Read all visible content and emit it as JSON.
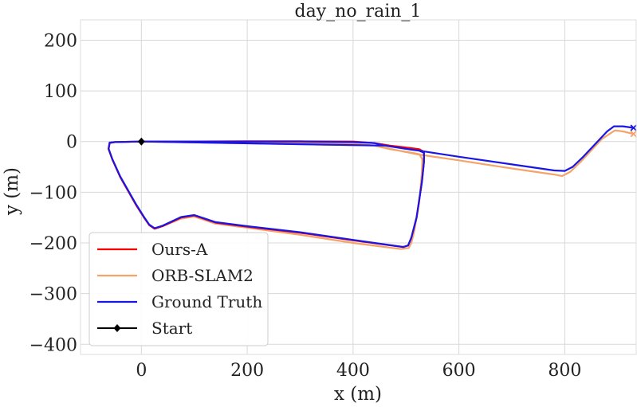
{
  "chart_data": {
    "type": "line",
    "title": "day_no_rain_1",
    "xlabel": "x (m)",
    "ylabel": "y (m)",
    "xlim": [
      -115,
      935
    ],
    "ylim": [
      -420,
      240
    ],
    "xticks": [
      0,
      200,
      400,
      600,
      800
    ],
    "yticks": [
      200,
      100,
      0,
      -100,
      -200,
      -300,
      -400
    ],
    "xtick_labels": [
      "0",
      "200",
      "400",
      "600",
      "800"
    ],
    "ytick_labels": [
      "200",
      "100",
      "0",
      "−100",
      "−200",
      "−300",
      "−400"
    ],
    "grid": true,
    "legend_position": "lower-left",
    "series": [
      {
        "name": "Ours-A",
        "color": "#ff0000",
        "points": [
          [
            0,
            0
          ],
          [
            100,
            0
          ],
          [
            200,
            0.5
          ],
          [
            300,
            0.5
          ],
          [
            400,
            0
          ],
          [
            440,
            -3
          ],
          [
            470,
            -8
          ],
          [
            510,
            -13
          ],
          [
            525,
            -15
          ],
          [
            534,
            -20
          ],
          [
            534,
            -40
          ],
          [
            530,
            -80
          ],
          [
            520,
            -150
          ],
          [
            510,
            -190
          ],
          [
            504,
            -205
          ],
          [
            495,
            -208
          ],
          [
            400,
            -195
          ],
          [
            300,
            -180
          ],
          [
            200,
            -168
          ],
          [
            140,
            -160
          ],
          [
            100,
            -146
          ],
          [
            75,
            -150
          ],
          [
            40,
            -167
          ],
          [
            25,
            -172
          ],
          [
            15,
            -165
          ],
          [
            5,
            -150
          ],
          [
            -10,
            -125
          ],
          [
            -40,
            -70
          ],
          [
            -55,
            -35
          ],
          [
            -62,
            -15
          ],
          [
            -60,
            -3
          ],
          [
            -50,
            -1
          ],
          [
            0,
            0
          ]
        ]
      },
      {
        "name": "ORB-SLAM2",
        "color": "#f4a46a",
        "points": [
          [
            0,
            0
          ],
          [
            100,
            0
          ],
          [
            200,
            0
          ],
          [
            300,
            -2
          ],
          [
            400,
            -4
          ],
          [
            440,
            -8
          ],
          [
            470,
            -15
          ],
          [
            500,
            -20
          ],
          [
            525,
            -25
          ],
          [
            531,
            -35
          ],
          [
            530,
            -60
          ],
          [
            525,
            -120
          ],
          [
            515,
            -180
          ],
          [
            510,
            -200
          ],
          [
            505,
            -210
          ],
          [
            490,
            -212
          ],
          [
            400,
            -200
          ],
          [
            300,
            -184
          ],
          [
            200,
            -170
          ],
          [
            140,
            -162
          ],
          [
            100,
            -148
          ],
          [
            75,
            -152
          ],
          [
            40,
            -167
          ],
          [
            25,
            -172
          ],
          [
            15,
            -165
          ],
          [
            5,
            -150
          ],
          [
            -10,
            -126
          ],
          [
            -40,
            -70
          ],
          [
            -55,
            -35
          ],
          [
            -62,
            -15
          ],
          [
            -60,
            -3
          ],
          [
            -50,
            -1
          ],
          [
            0,
            0
          ],
          [
            440,
            -8
          ],
          [
            520,
            -25
          ],
          [
            600,
            -37
          ],
          [
            700,
            -53
          ],
          [
            780,
            -65
          ],
          [
            795,
            -68
          ],
          [
            810,
            -60
          ],
          [
            830,
            -40
          ],
          [
            870,
            5
          ],
          [
            895,
            22
          ],
          [
            910,
            20
          ],
          [
            930,
            15
          ]
        ]
      },
      {
        "name": "Ground Truth",
        "color": "#1a16e6",
        "points": [
          [
            0,
            0
          ],
          [
            100,
            0
          ],
          [
            200,
            0
          ],
          [
            300,
            0
          ],
          [
            400,
            -1
          ],
          [
            440,
            -3
          ],
          [
            460,
            -8
          ],
          [
            510,
            -16
          ],
          [
            525,
            -18
          ],
          [
            534,
            -22
          ],
          [
            534,
            -40
          ],
          [
            530,
            -80
          ],
          [
            520,
            -150
          ],
          [
            510,
            -190
          ],
          [
            504,
            -205
          ],
          [
            495,
            -208
          ],
          [
            400,
            -194
          ],
          [
            300,
            -179
          ],
          [
            200,
            -167
          ],
          [
            140,
            -159
          ],
          [
            100,
            -145
          ],
          [
            75,
            -149
          ],
          [
            40,
            -166
          ],
          [
            25,
            -171
          ],
          [
            15,
            -164
          ],
          [
            5,
            -149
          ],
          [
            -10,
            -124
          ],
          [
            -40,
            -69
          ],
          [
            -55,
            -34
          ],
          [
            -62,
            -14
          ],
          [
            -60,
            -2
          ],
          [
            -50,
            -1
          ],
          [
            0,
            0
          ],
          [
            460,
            -8
          ],
          [
            525,
            -18
          ],
          [
            600,
            -30
          ],
          [
            700,
            -45
          ],
          [
            780,
            -57
          ],
          [
            800,
            -58
          ],
          [
            815,
            -50
          ],
          [
            835,
            -30
          ],
          [
            880,
            20
          ],
          [
            893,
            30
          ],
          [
            910,
            30
          ],
          [
            930,
            27
          ]
        ]
      }
    ],
    "start": {
      "name": "Start",
      "x": 0,
      "y": 0,
      "color": "#000000"
    },
    "end_markers": [
      {
        "series": "ORB-SLAM2",
        "x": 930,
        "y": 15,
        "color": "#f4a46a"
      },
      {
        "series": "Ground Truth",
        "x": 930,
        "y": 27,
        "color": "#1a16e6"
      }
    ]
  }
}
